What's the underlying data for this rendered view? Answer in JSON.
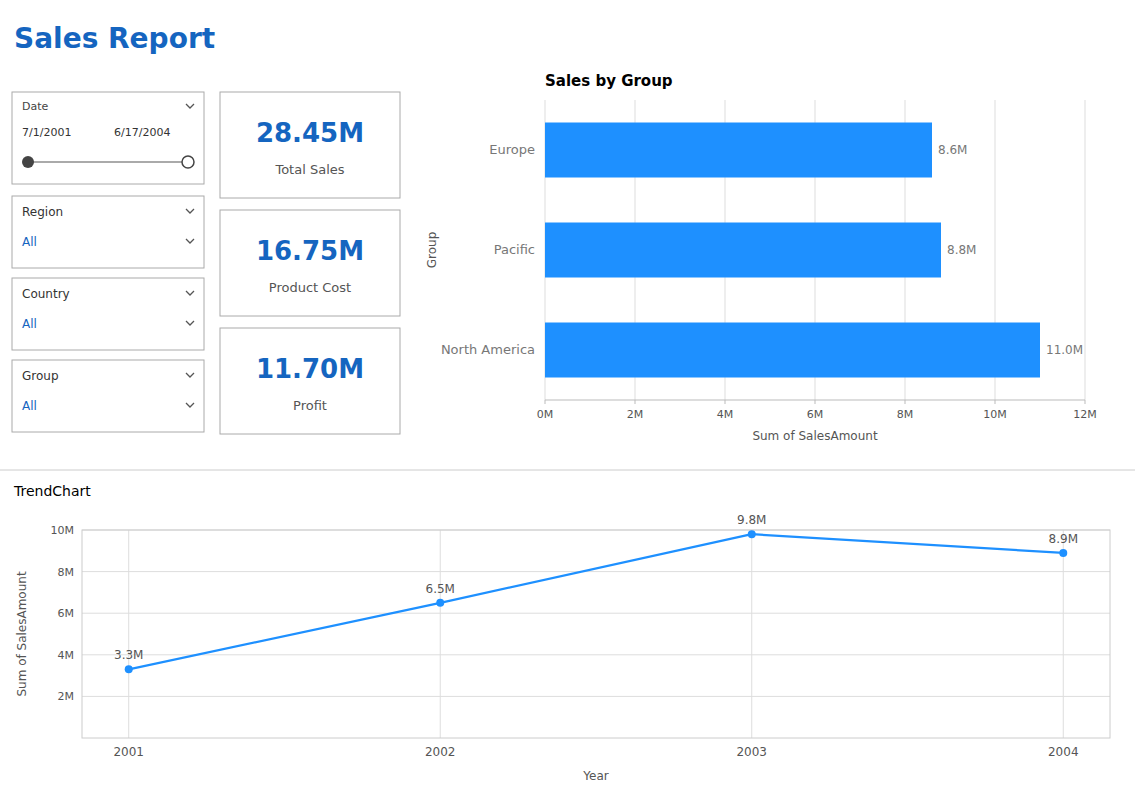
{
  "title": "Sales Report",
  "kpis": [
    {
      "value": "28.45M",
      "label": "Total Sales"
    },
    {
      "value": "16.75M",
      "label": "Product Cost"
    },
    {
      "value": "11.70M",
      "label": "Profit"
    }
  ],
  "filters": [
    {
      "label": "Date",
      "value1": "7/1/2001",
      "value2": "6/17/2004"
    },
    {
      "label": "Region",
      "value": "All"
    },
    {
      "label": "Country",
      "value": "All"
    },
    {
      "label": "Group",
      "value": "All"
    }
  ],
  "chart_data": [
    {
      "type": "bar",
      "orientation": "horizontal",
      "title": "Sales by Group",
      "categories": [
        "North America",
        "Pacific",
        "Europe"
      ],
      "values": [
        11.0,
        8.8,
        8.6
      ],
      "value_labels": [
        "11.0M",
        "8.8M",
        "8.6M"
      ],
      "data_labels": true,
      "color": "#1E90FF",
      "xlabel": "Sum of SalesAmount",
      "ylabel": "Group",
      "xlim": [
        0,
        12
      ],
      "xticks": [
        {
          "value": 0,
          "label": "0M"
        },
        {
          "value": 2,
          "label": "2M"
        },
        {
          "value": 4,
          "label": "4M"
        },
        {
          "value": 6,
          "label": "6M"
        },
        {
          "value": 8,
          "label": "8M"
        },
        {
          "value": 10,
          "label": "10M"
        },
        {
          "value": 12,
          "label": "12M"
        }
      ],
      "grid": true
    },
    {
      "type": "line",
      "title": "TrendChart",
      "x": [
        2001,
        2002,
        2003,
        2004
      ],
      "values": [
        3.3,
        6.5,
        9.8,
        8.9
      ],
      "value_labels": [
        "3.3M",
        "6.5M",
        "9.8M",
        "8.9M"
      ],
      "data_labels": true,
      "color": "#1E90FF",
      "marker": "circle",
      "xlabel": "Year",
      "ylabel": "Sum of SalesAmount",
      "xlim": [
        2000.85,
        2004.15
      ],
      "xticks": [
        2001,
        2002,
        2003,
        2004
      ],
      "ylim": [
        0,
        10
      ],
      "yticks": [
        {
          "value": 2,
          "label": "2M"
        },
        {
          "value": 4,
          "label": "4M"
        },
        {
          "value": 6,
          "label": "6M"
        },
        {
          "value": 8,
          "label": "8M"
        },
        {
          "value": 10,
          "label": "10M"
        }
      ],
      "grid": true
    }
  ]
}
